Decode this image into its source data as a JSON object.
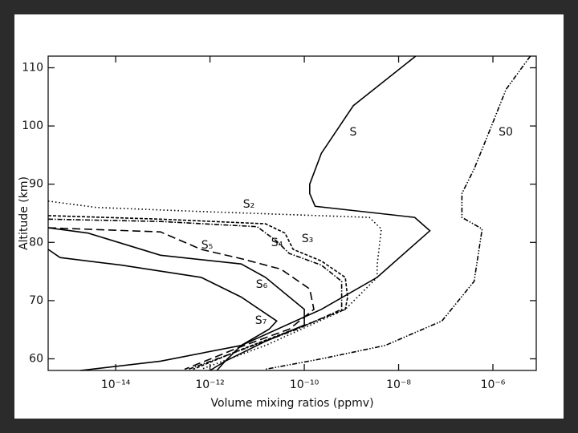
{
  "chart_data": {
    "type": "line",
    "x_scale": "log",
    "xlabel": "Volume mixing ratios  (ppmv)",
    "ylabel": "Altitude  (km)",
    "xlim": [
      3.7e-16,
      8.3e-06
    ],
    "ylim": [
      58,
      112
    ],
    "xticks": [
      {
        "value": 1e-14,
        "label": "10⁻¹⁴"
      },
      {
        "value": 1e-12,
        "label": "10⁻¹²"
      },
      {
        "value": 1e-10,
        "label": "10⁻¹⁰"
      },
      {
        "value": 1e-08,
        "label": "10⁻⁸"
      },
      {
        "value": 1e-06,
        "label": "10⁻⁶"
      }
    ],
    "yticks": [
      60,
      70,
      80,
      90,
      100,
      110
    ],
    "series": [
      {
        "name": "S",
        "color": "#000000",
        "style": "solid",
        "x": [
          2.3e-08,
          1.1e-09,
          2.3e-10,
          1.3e-10,
          1.3e-10,
          1.7e-10,
          2.2e-08,
          4.6e-08,
          3.5e-09,
          2.3e-10,
          4.6e-12,
          8.9e-14,
          1.8e-15
        ],
        "values": [
          112,
          103.5,
          95.3,
          90,
          88.4,
          86.2,
          84.3,
          82,
          74,
          68.5,
          62.3,
          59.6,
          58
        ]
      },
      {
        "name": "S0",
        "color": "#000000",
        "style": "dashdotdot",
        "x": [
          6.2e-06,
          1.9e-06,
          8.7e-07,
          4e-07,
          2.2e-07,
          2.2e-07,
          5.9e-07,
          4e-07,
          8.3e-08,
          5.2e-09,
          2.3e-10,
          1.5e-11
        ],
        "values": [
          112,
          106.3,
          99.4,
          92.6,
          88.4,
          84.3,
          82.3,
          73.3,
          66.5,
          62.3,
          60,
          58.2
        ]
      },
      {
        "name": "S₂",
        "color": "#000000",
        "style": "dotted",
        "x": [
          3.7e-16,
          3.9e-15,
          6.5e-13,
          2.4e-09,
          4.3e-09,
          3.5e-09,
          3.5e-09,
          7.4e-10,
          1.5e-11,
          6.5e-13
        ],
        "values": [
          87.1,
          86,
          85.3,
          84.3,
          82.3,
          76.1,
          74,
          68.5,
          62.3,
          58.2
        ]
      },
      {
        "name": "S₃",
        "color": "#000000",
        "style": "shortdash",
        "x": [
          3.7e-16,
          8.9e-14,
          1.5e-11,
          3.9e-11,
          5.8e-11,
          2.3e-10,
          7.4e-10,
          8.3e-10,
          7.4e-10,
          1.05e-10,
          4.6e-12,
          4.4e-13
        ],
        "values": [
          84.6,
          84,
          83.2,
          81.6,
          78.8,
          76.8,
          74,
          70.6,
          68.5,
          65.8,
          61.6,
          58.2
        ]
      },
      {
        "name": "S₄",
        "color": "#000000",
        "style": "dashdot",
        "x": [
          3.7e-16,
          8.9e-14,
          1e-11,
          2.6e-11,
          4.8e-11,
          2.3e-10,
          6.2e-10,
          6.2e-10,
          7.1e-11,
          3.1e-12,
          3.5e-13
        ],
        "values": [
          84,
          83.6,
          82.7,
          80.2,
          78.1,
          76.1,
          73.3,
          68.5,
          65.1,
          61,
          58.2
        ]
      },
      {
        "name": "S₅",
        "color": "#000000",
        "style": "longdash",
        "x": [
          3.7e-16,
          8.9e-14,
          6.5e-13,
          4.6e-12,
          3.2e-11,
          1.3e-10,
          1.6e-10,
          4.8e-11,
          4.6e-12,
          2.9e-13
        ],
        "values": [
          82.5,
          81.8,
          78.8,
          77.2,
          75.4,
          72,
          68.5,
          65.1,
          62.1,
          58.2
        ]
      },
      {
        "name": "S₆",
        "color": "#000000",
        "style": "solid",
        "x": [
          3.7e-16,
          2.6e-15,
          8.9e-14,
          4.6e-12,
          1.5e-11,
          1e-10,
          1e-10,
          1.5e-11,
          2.1e-12,
          1e-12
        ],
        "values": [
          82.5,
          81.6,
          77.8,
          76.3,
          74,
          68.5,
          65.8,
          63,
          59.6,
          58
        ]
      },
      {
        "name": "S₇",
        "color": "#000000",
        "style": "solid",
        "x": [
          3.7e-16,
          6.6e-16,
          1.3e-14,
          6.5e-13,
          4.6e-12,
          2.6e-11,
          1.8e-11,
          4.6e-12,
          2.1e-12,
          1.4e-12
        ],
        "values": [
          78.8,
          77.4,
          76.1,
          74,
          70.6,
          66.5,
          65.1,
          62.3,
          59.6,
          58
        ]
      }
    ]
  }
}
